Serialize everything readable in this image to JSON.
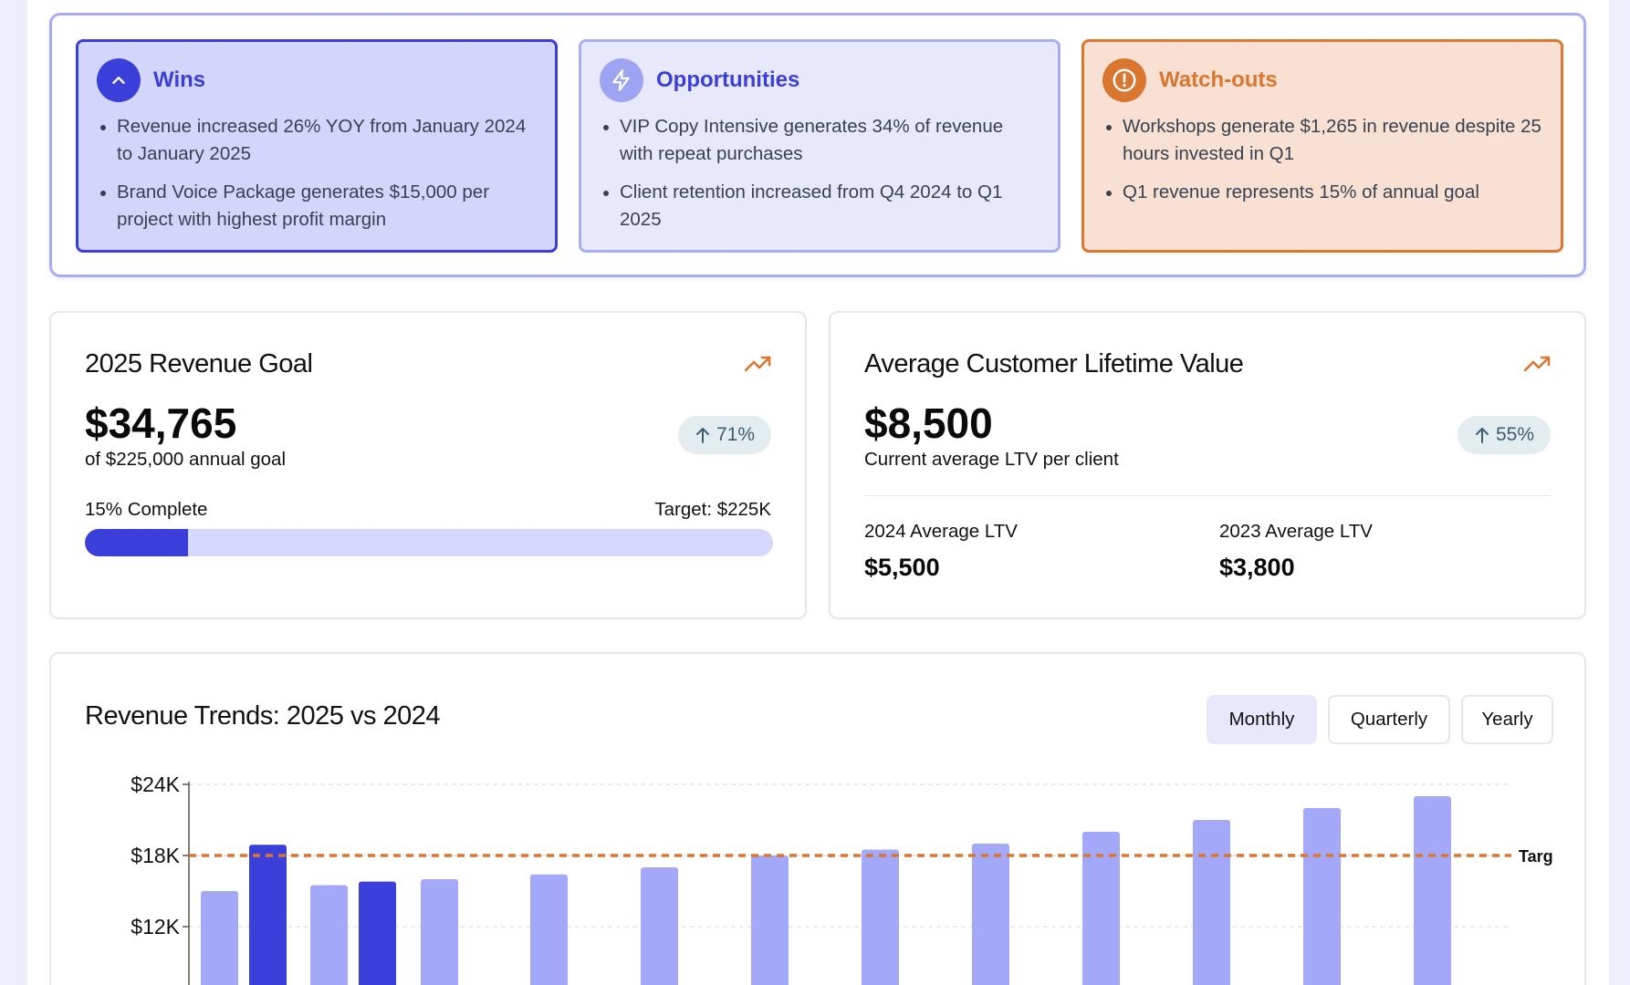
{
  "insights": {
    "wins": {
      "title": "Wins",
      "icon": "chevron-up-icon",
      "items": [
        "Revenue increased 26% YOY from January 2024 to January 2025",
        "Brand Voice Package generates $15,000 per project with highest profit margin"
      ]
    },
    "opportunities": {
      "title": "Opportunities",
      "icon": "lightning-icon",
      "items": [
        "VIP Copy Intensive generates 34% of revenue with repeat purchases",
        "Client retention increased from Q4 2024 to Q1 2025"
      ]
    },
    "watchouts": {
      "title": "Watch-outs",
      "icon": "alert-circle-icon",
      "items": [
        "Workshops generate $1,265 in revenue despite 25 hours invested in Q1",
        "Q1 revenue represents 15% of annual goal"
      ]
    }
  },
  "revenue_goal": {
    "title": "2025 Revenue Goal",
    "value": "$34,765",
    "subtitle": "of $225,000 annual goal",
    "change": "71%",
    "progress_label": "15% Complete",
    "target_label": "Target: $225K",
    "progress_fraction": 0.15
  },
  "ltv": {
    "title": "Average Customer Lifetime Value",
    "value": "$8,500",
    "subtitle": "Current average LTV per client",
    "change": "55%",
    "y2024_label": "2024 Average LTV",
    "y2024_value": "$5,500",
    "y2023_label": "2023 Average LTV",
    "y2023_value": "$3,800"
  },
  "trends": {
    "title": "Revenue Trends: 2025 vs 2024",
    "tabs": [
      "Monthly",
      "Quarterly",
      "Yearly"
    ],
    "active_tab": "Monthly"
  },
  "colors": {
    "accent": "#3a3fd9",
    "accent_light": "#a3a8f8",
    "orange": "#d9762f"
  },
  "chart_data": {
    "type": "bar",
    "y_ticks": [
      "$24K",
      "$18K",
      "$12K"
    ],
    "ylim": [
      0,
      24000
    ],
    "target_line": {
      "value": 18000,
      "label": "Targ"
    },
    "groups": [
      [
        {
          "series": "2024",
          "value": 15000
        },
        {
          "series": "2025",
          "value": 18900
        }
      ],
      [
        {
          "series": "2024",
          "value": 15500
        },
        {
          "series": "2025",
          "value": 15800
        }
      ],
      [
        {
          "series": "2024",
          "value": 16000
        }
      ],
      [
        {
          "series": "2024",
          "value": 16400
        }
      ],
      [
        {
          "series": "2024",
          "value": 17000
        }
      ],
      [
        {
          "series": "2024",
          "value": 18000
        }
      ],
      [
        {
          "series": "2024",
          "value": 18500
        }
      ],
      [
        {
          "series": "2024",
          "value": 19000
        }
      ],
      [
        {
          "series": "2024",
          "value": 20000
        }
      ],
      [
        {
          "series": "2024",
          "value": 21000
        }
      ],
      [
        {
          "series": "2024",
          "value": 22000
        }
      ],
      [
        {
          "series": "2024",
          "value": 23000
        }
      ]
    ],
    "series_colors": {
      "2024": "#a3a8f8",
      "2025": "#3a3fd9"
    }
  }
}
